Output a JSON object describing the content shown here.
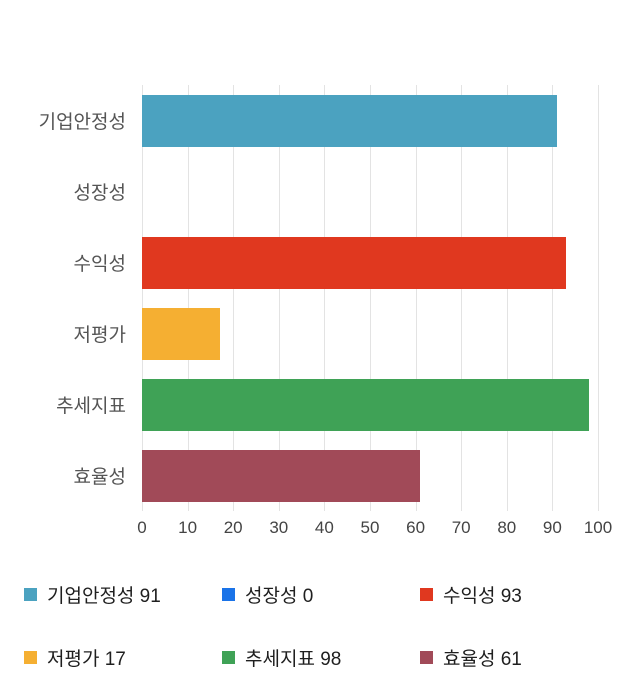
{
  "chart_data": {
    "type": "bar",
    "orientation": "horizontal",
    "title": "",
    "xlabel": "",
    "ylabel": "",
    "categories": [
      "기업안정성",
      "성장성",
      "수익성",
      "저평가",
      "추세지표",
      "효율성"
    ],
    "values": [
      91,
      0,
      93,
      17,
      98,
      61
    ],
    "colors": [
      "#4BA2C0",
      "#1A73E8",
      "#E0381F",
      "#F5AF32",
      "#3FA256",
      "#A14A58"
    ],
    "xlim": [
      0,
      100
    ],
    "x_ticks": [
      0,
      10,
      20,
      30,
      40,
      50,
      60,
      70,
      80,
      90,
      100
    ],
    "grid": true,
    "gridline_color": "#e3e3e3",
    "legend_position": "bottom",
    "legend": [
      {
        "label": "기업안정성",
        "value": 91,
        "color": "#4BA2C0"
      },
      {
        "label": "성장성",
        "value": 0,
        "color": "#1A73E8"
      },
      {
        "label": "수익성",
        "value": 93,
        "color": "#E0381F"
      },
      {
        "label": "저평가",
        "value": 17,
        "color": "#F5AF32"
      },
      {
        "label": "추세지표",
        "value": 98,
        "color": "#3FA256"
      },
      {
        "label": "효율성",
        "value": 61,
        "color": "#A14A58"
      }
    ]
  }
}
